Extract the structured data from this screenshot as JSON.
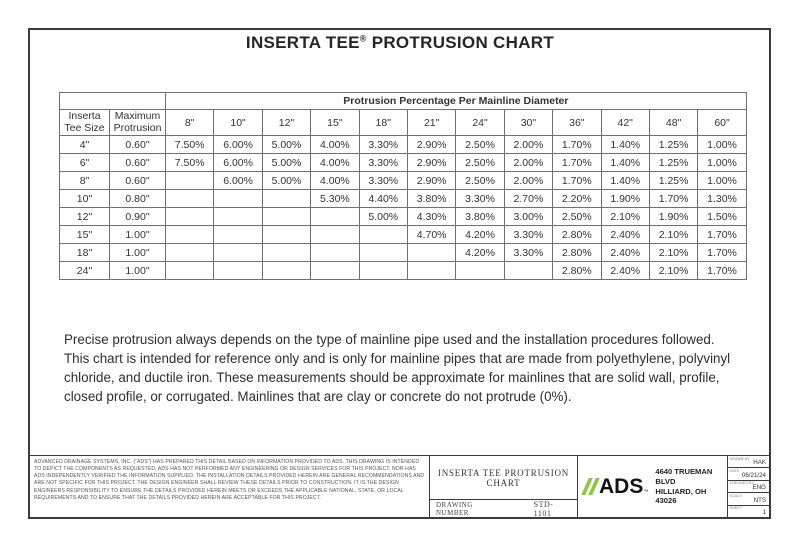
{
  "title": {
    "part1": "INSERTA TEE",
    "reg": "®",
    "part2": " PROTRUSION CHART"
  },
  "chart_data": {
    "type": "table",
    "title": "Protrusion Percentage Per Mainline Diameter",
    "col1_header": "Inserta\nTee Size",
    "col2_header": "Maximum\nProtrusion",
    "diameters": [
      "8\"",
      "10\"",
      "12\"",
      "15\"",
      "18\"",
      "21\"",
      "24\"",
      "30\"",
      "36\"",
      "42\"",
      "48\"",
      "60\""
    ],
    "rows": [
      {
        "size": "4\"",
        "max": "0.60\"",
        "values": [
          "7.50%",
          "6.00%",
          "5.00%",
          "4.00%",
          "3.30%",
          "2.90%",
          "2.50%",
          "2.00%",
          "1.70%",
          "1.40%",
          "1.25%",
          "1.00%"
        ]
      },
      {
        "size": "6\"",
        "max": "0.60\"",
        "values": [
          "7.50%",
          "6.00%",
          "5.00%",
          "4.00%",
          "3.30%",
          "2.90%",
          "2.50%",
          "2.00%",
          "1.70%",
          "1.40%",
          "1.25%",
          "1.00%"
        ]
      },
      {
        "size": "8\"",
        "max": "0.60\"",
        "values": [
          "",
          "6.00%",
          "5.00%",
          "4.00%",
          "3.30%",
          "2.90%",
          "2.50%",
          "2.00%",
          "1.70%",
          "1.40%",
          "1.25%",
          "1.00%"
        ]
      },
      {
        "size": "10\"",
        "max": "0.80\"",
        "values": [
          "",
          "",
          "",
          "5.30%",
          "4.40%",
          "3.80%",
          "3.30%",
          "2.70%",
          "2.20%",
          "1.90%",
          "1.70%",
          "1.30%"
        ]
      },
      {
        "size": "12\"",
        "max": "0.90\"",
        "values": [
          "",
          "",
          "",
          "",
          "5.00%",
          "4.30%",
          "3.80%",
          "3.00%",
          "2.50%",
          "2.10%",
          "1.90%",
          "1.50%"
        ]
      },
      {
        "size": "15\"",
        "max": "1.00\"",
        "values": [
          "",
          "",
          "",
          "",
          "",
          "4.70%",
          "4.20%",
          "3.30%",
          "2.80%",
          "2.40%",
          "2.10%",
          "1.70%"
        ]
      },
      {
        "size": "18\"",
        "max": "1.00\"",
        "values": [
          "",
          "",
          "",
          "",
          "",
          "",
          "4.20%",
          "3.30%",
          "2.80%",
          "2.40%",
          "2.10%",
          "1.70%"
        ]
      },
      {
        "size": "24\"",
        "max": "1.00\"",
        "values": [
          "",
          "",
          "",
          "",
          "",
          "",
          "",
          "",
          "2.80%",
          "2.40%",
          "2.10%",
          "1.70%"
        ]
      }
    ]
  },
  "note": "Precise protrusion always depends on the type of mainline pipe used and the installation procedures followed. This chart is intended for reference only and is only for mainline pipes that are made from polyethylene, polyvinyl chloride, and ductile iron. These measurements should be approximate for mainlines that are solid wall, profile, closed profile, or corrugated. Mainlines that are clay or concrete do not protrude (0%).",
  "title_block": {
    "disclaimer": "ADVANCED DRAINAGE SYSTEMS, INC. (\"ADS\") HAS PREPARED THIS DETAIL BASED ON INFORMATION PROVIDED TO ADS.  THIS DRAWING IS INTENDED TO DEPICT THE COMPONENTS AS REQUESTED.  ADS HAS NOT PERFORMED ANY ENGINEERING OR DESIGN SERVICES FOR THIS PROJECT, NOR HAS ADS INDEPENDENTLY VERIFIED THE INFORMATION SUPPLIED.  THE INSTALLATION DETAILS PROVIDED HEREIN ARE GENERAL RECOMMENDATIONS AND ARE NOT SPECIFIC FOR THIS PROJECT.  THE DESIGN ENGINEER SHALL REVIEW THESE DETAILS PRIOR TO CONSTRUCTION.  IT IS THE DESIGN ENGINEERS RESPONSIBILITY TO ENSURE THE DETAILS PROVIDED HEREIN MEETS OR EXCEEDS THE APPLICABLE NATIONAL, STATE, OR LOCAL REQUIREMENTS AND TO ENSURE THAT THE DETAILS PROVIDED HEREIN ARE ACCEPTABLE FOR THIS PROJECT.",
    "drawing_title": "INSERTA TEE PROTRUSION CHART",
    "drawing_number_label": "DRAWING NUMBER",
    "drawing_number": "STD-1101",
    "logo_text": "ADS",
    "logo_tm": "™",
    "logo_green": "#8DC63F",
    "address_line1": "4640 TRUEMAN BLVD",
    "address_line2": "HILLIARD, OH  43026",
    "info_rows": [
      {
        "label": "DRAWN BY",
        "value": "HAK"
      },
      {
        "label": "DATE",
        "value": "06/21/24"
      },
      {
        "label": "CHECKED BY",
        "value": "ENG"
      },
      {
        "label": "SCALE",
        "value": "NTS"
      },
      {
        "label": "SHEET",
        "value": "1"
      }
    ]
  }
}
